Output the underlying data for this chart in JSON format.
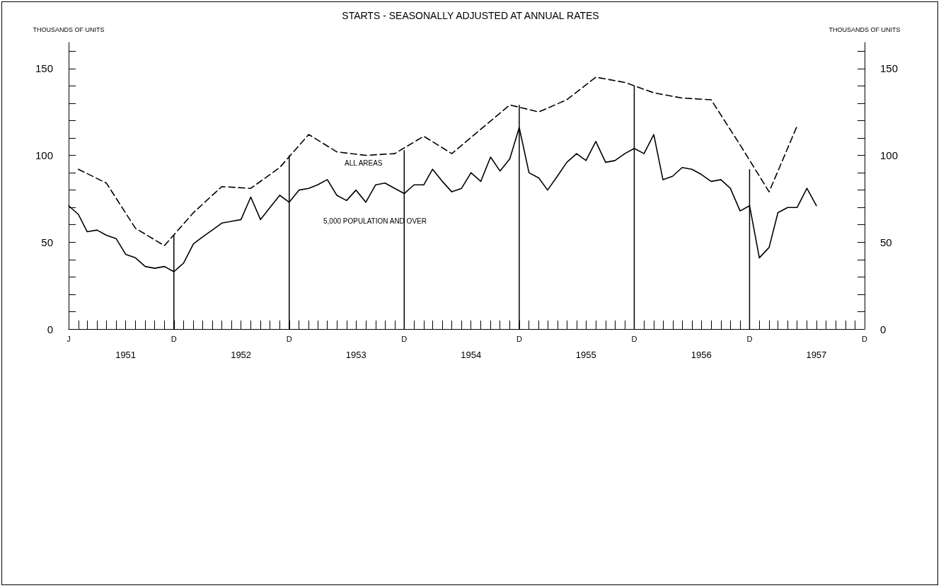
{
  "chart_data": {
    "type": "line",
    "title": "STARTS - SEASONALLY ADJUSTED AT ANNUAL RATES",
    "ylabel": "THOUSANDS OF UNITS",
    "y2label": "THOUSANDS OF UNITS",
    "marker": "none",
    "xlim": [
      "1951-01",
      "1957-12"
    ],
    "annotations": [
      "J",
      "D",
      "D",
      "D",
      "D",
      "D",
      "D",
      "D"
    ],
    "xticks": [
      {
        "value": "1951-01",
        "label": null
      },
      {
        "value": "1951-02",
        "label": null
      },
      {
        "value": "1951-03",
        "label": null
      },
      {
        "value": "1951-04",
        "label": null
      },
      {
        "value": "1951-05",
        "label": null
      },
      {
        "value": "1951-06",
        "label": null
      },
      {
        "value": "1951-07",
        "label": null
      },
      {
        "value": "1951-08",
        "label": null
      },
      {
        "value": "1951-09",
        "label": null
      },
      {
        "value": "1951-10",
        "label": null
      },
      {
        "value": "1951-11",
        "label": null
      },
      {
        "value": "1951-12",
        "label": null
      },
      {
        "value": "1951-07",
        "label": "1951"
      },
      {
        "value": "1952-01",
        "label": null
      },
      {
        "value": "1952-02",
        "label": null
      },
      {
        "value": "1952-03",
        "label": null
      },
      {
        "value": "1952-04",
        "label": null
      },
      {
        "value": "1952-05",
        "label": null
      },
      {
        "value": "1952-06",
        "label": null
      },
      {
        "value": "1952-07",
        "label": null
      },
      {
        "value": "1952-08",
        "label": null
      },
      {
        "value": "1952-09",
        "label": null
      },
      {
        "value": "1952-10",
        "label": null
      },
      {
        "value": "1952-11",
        "label": null
      },
      {
        "value": "1952-12",
        "label": null
      },
      {
        "value": "1952-07",
        "label": "1952"
      },
      {
        "value": "1953-01",
        "label": null
      },
      {
        "value": "1953-02",
        "label": null
      },
      {
        "value": "1953-03",
        "label": null
      },
      {
        "value": "1953-04",
        "label": null
      },
      {
        "value": "1953-05",
        "label": null
      },
      {
        "value": "1953-06",
        "label": null
      },
      {
        "value": "1953-07",
        "label": null
      },
      {
        "value": "1953-08",
        "label": null
      },
      {
        "value": "1953-09",
        "label": null
      },
      {
        "value": "1953-10",
        "label": null
      },
      {
        "value": "1953-11",
        "label": null
      },
      {
        "value": "1953-12",
        "label": null
      },
      {
        "value": "1953-07",
        "label": "1953"
      },
      {
        "value": "1954-01",
        "label": null
      },
      {
        "value": "1954-02",
        "label": null
      },
      {
        "value": "1954-03",
        "label": null
      },
      {
        "value": "1954-04",
        "label": null
      },
      {
        "value": "1954-05",
        "label": null
      },
      {
        "value": "1954-06",
        "label": null
      },
      {
        "value": "1954-07",
        "label": null
      },
      {
        "value": "1954-08",
        "label": null
      },
      {
        "value": "1954-09",
        "label": null
      },
      {
        "value": "1954-10",
        "label": null
      },
      {
        "value": "1954-11",
        "label": null
      },
      {
        "value": "1954-12",
        "label": null
      },
      {
        "value": "1954-07",
        "label": "1954"
      },
      {
        "value": "1955-01",
        "label": null
      },
      {
        "value": "1955-02",
        "label": null
      },
      {
        "value": "1955-03",
        "label": null
      },
      {
        "value": "1955-04",
        "label": null
      },
      {
        "value": "1955-05",
        "label": null
      },
      {
        "value": "1955-06",
        "label": null
      },
      {
        "value": "1955-07",
        "label": null
      },
      {
        "value": "1955-08",
        "label": null
      },
      {
        "value": "1955-09",
        "label": null
      },
      {
        "value": "1955-10",
        "label": null
      },
      {
        "value": "1955-11",
        "label": null
      },
      {
        "value": "1955-12",
        "label": null
      },
      {
        "value": "1955-07",
        "label": "1955"
      },
      {
        "value": "1956-01",
        "label": null
      },
      {
        "value": "1956-02",
        "label": null
      },
      {
        "value": "1956-03",
        "label": null
      },
      {
        "value": "1956-04",
        "label": null
      },
      {
        "value": "1956-05",
        "label": null
      },
      {
        "value": "1956-06",
        "label": null
      },
      {
        "value": "1956-07",
        "label": null
      },
      {
        "value": "1956-08",
        "label": null
      },
      {
        "value": "1956-09",
        "label": null
      },
      {
        "value": "1956-10",
        "label": null
      },
      {
        "value": "1956-11",
        "label": null
      },
      {
        "value": "1956-12",
        "label": null
      },
      {
        "value": "1956-07",
        "label": "1956"
      },
      {
        "value": "1957-01",
        "label": null
      },
      {
        "value": "1957-02",
        "label": null
      },
      {
        "value": "1957-03",
        "label": null
      },
      {
        "value": "1957-04",
        "label": null
      },
      {
        "value": "1957-05",
        "label": null
      },
      {
        "value": "1957-06",
        "label": null
      },
      {
        "value": "1957-07",
        "label": null
      },
      {
        "value": "1957-08",
        "label": null
      },
      {
        "value": "1957-09",
        "label": null
      },
      {
        "value": "1957-10",
        "label": null
      },
      {
        "value": "1957-11",
        "label": null
      },
      {
        "value": "1957-12",
        "label": null
      },
      {
        "value": "1957-07",
        "label": "1957"
      }
    ],
    "ylim": [
      0,
      165
    ],
    "yticks": [
      0,
      {
        "value": 10,
        "label": null
      },
      {
        "value": 20,
        "label": null
      },
      {
        "value": 30,
        "label": null
      },
      {
        "value": 40,
        "label": null
      },
      50,
      {
        "value": 60,
        "label": null
      },
      {
        "value": 70,
        "label": null
      },
      {
        "value": 80,
        "label": null
      },
      {
        "value": 90,
        "label": null
      },
      100,
      {
        "value": 110,
        "label": null
      },
      {
        "value": 120,
        "label": null
      },
      {
        "value": 130,
        "label": null
      },
      {
        "value": 140,
        "label": null
      },
      150,
      {
        "value": 160,
        "label": null
      }
    ],
    "y2lim": [
      0,
      165
    ],
    "y2ticks": [
      0,
      {
        "value": 10,
        "label": null
      },
      {
        "value": 20,
        "label": null
      },
      {
        "value": 30,
        "label": null
      },
      {
        "value": 40,
        "label": null
      },
      50,
      {
        "value": 60,
        "label": null
      },
      {
        "value": 70,
        "label": null
      },
      {
        "value": 80,
        "label": null
      },
      {
        "value": 90,
        "label": null
      },
      100,
      {
        "value": 110,
        "label": null
      },
      {
        "value": 120,
        "label": null
      },
      {
        "value": 130,
        "label": null
      },
      {
        "value": 140,
        "label": null
      },
      150,
      {
        "value": 160,
        "label": null
      }
    ],
    "series": [
      {
        "name": "ALL AREAS",
        "line_style": "dashed",
        "color": "#000000",
        "x": [
          "1951-02",
          "1951-05",
          "1951-08",
          "1951-11",
          "1952-02",
          "1952-05",
          "1952-08",
          "1952-11",
          "1953-02",
          "1953-05",
          "1953-08",
          "1953-11",
          "1954-02",
          "1954-05",
          "1954-08",
          "1954-11",
          "1955-02",
          "1955-05",
          "1955-08",
          "1955-11",
          "1956-02",
          "1956-05",
          "1956-08",
          "1956-11",
          "1957-02",
          "1957-05"
        ],
        "values": [
          92,
          84,
          58,
          48,
          67,
          82,
          81,
          93,
          112,
          102,
          100,
          101,
          111,
          101,
          115,
          129,
          125,
          132,
          145,
          142,
          136,
          133,
          132,
          106,
          79,
          117
        ]
      },
      {
        "name": "5,000 POPULATION AND OVER",
        "line_style": "solid",
        "color": "#000000",
        "x": [
          "1951-01",
          "1951-02",
          "1951-03",
          "1951-04",
          "1951-05",
          "1951-06",
          "1951-07",
          "1951-08",
          "1951-09",
          "1951-10",
          "1951-11",
          "1951-12",
          "1952-01",
          "1952-02",
          "1952-03",
          "1952-04",
          "1952-05",
          "1952-06",
          "1952-07",
          "1952-08",
          "1952-09",
          "1952-10",
          "1952-11",
          "1952-12",
          "1953-01",
          "1953-02",
          "1953-03",
          "1953-04",
          "1953-05",
          "1953-06",
          "1953-07",
          "1953-08",
          "1953-09",
          "1953-10",
          "1953-11",
          "1953-12",
          "1954-01",
          "1954-02",
          "1954-03",
          "1954-04",
          "1954-05",
          "1954-06",
          "1954-07",
          "1954-08",
          "1954-09",
          "1954-10",
          "1954-11",
          "1954-12",
          "1955-01",
          "1955-02",
          "1955-03",
          "1955-04",
          "1955-05",
          "1955-06",
          "1955-07",
          "1955-08",
          "1955-09",
          "1955-10",
          "1955-11",
          "1955-12",
          "1956-01",
          "1956-02",
          "1956-03",
          "1956-04",
          "1956-05",
          "1956-06",
          "1956-07",
          "1956-08",
          "1956-09",
          "1956-10",
          "1956-11",
          "1956-12",
          "1957-01",
          "1957-02",
          "1957-03",
          "1957-04",
          "1957-05",
          "1957-06",
          "1957-07"
        ],
        "values": [
          71,
          66,
          56,
          57,
          54,
          52,
          43,
          41,
          36,
          35,
          36,
          33,
          38,
          49,
          53,
          57,
          61,
          62,
          63,
          76,
          63,
          70,
          77,
          73,
          80,
          81,
          83,
          86,
          77,
          74,
          80,
          73,
          83,
          84,
          81,
          78,
          83,
          83,
          92,
          85,
          79,
          81,
          90,
          85,
          99,
          91,
          98,
          116,
          90,
          87,
          80,
          88,
          96,
          101,
          97,
          108,
          96,
          97,
          101,
          104,
          101,
          112,
          86,
          88,
          93,
          92,
          89,
          85,
          86,
          81,
          68,
          71,
          41,
          47,
          67,
          70,
          70,
          81,
          71
        ]
      },
      {
        "type": "bar",
        "color": "#000000",
        "x": [
          "1951-12",
          "1952-12",
          "1953-12",
          "1954-12",
          "1955-12",
          "1956-12"
        ],
        "values": [
          54,
          100,
          103,
          129,
          140,
          92
        ]
      }
    ]
  }
}
